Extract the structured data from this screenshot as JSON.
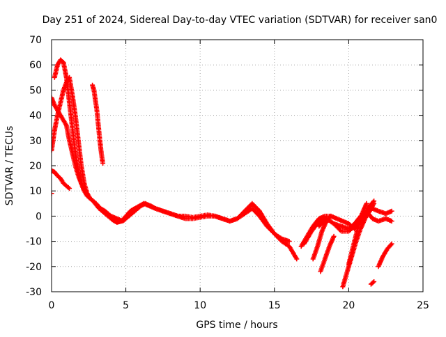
{
  "chart_data": {
    "type": "scatter",
    "title": "Day 251 of 2024, Sidereal Day-to-day VTEC variation (SDTVAR) for receiver san0",
    "xlabel": "GPS time / hours",
    "ylabel": "SDTVAR / TECUs",
    "xlim": [
      0,
      25
    ],
    "ylim": [
      -30,
      70
    ],
    "xticks": [
      "0",
      "5",
      "10",
      "15",
      "20",
      "25"
    ],
    "yticks": [
      "-30",
      "-20",
      "-10",
      "0",
      "10",
      "20",
      "30",
      "40",
      "50",
      "60",
      "70"
    ],
    "grid": true,
    "marker": "+",
    "series": [
      {
        "name": "s1",
        "color": "#ff0000",
        "x": [
          0.0,
          0.2,
          0.4,
          0.6,
          0.8,
          1.0,
          1.2,
          1.4,
          1.6,
          1.8,
          2.0,
          2.2,
          2.4,
          2.6,
          2.8,
          3.0,
          3.2,
          3.5,
          3.8,
          4.1,
          4.4,
          4.7,
          5.0,
          5.3,
          5.6,
          5.9,
          6.2,
          6.6,
          7.0,
          7.5,
          8.0,
          8.5,
          9.0,
          9.5,
          10.0,
          10.5,
          11.0,
          11.5,
          12.0,
          12.5,
          13.0,
          13.5,
          14.0,
          14.5,
          15.0,
          15.5,
          16.0
        ],
        "y": [
          47,
          44,
          42,
          40,
          38,
          36,
          30,
          25,
          20,
          16,
          13,
          10,
          8,
          7,
          6,
          4.5,
          3,
          1.5,
          0,
          -1.5,
          -2.5,
          -2,
          0,
          2,
          3,
          4,
          5,
          4,
          3,
          2,
          1,
          0,
          -1,
          -1,
          -0.5,
          0,
          0,
          -1,
          -2,
          -1,
          1,
          3,
          0,
          -4,
          -7,
          -9,
          -10
        ]
      },
      {
        "name": "s2",
        "color": "#ff0000",
        "x": [
          0.0,
          0.2,
          0.4,
          0.6,
          0.8,
          1.0,
          1.2
        ],
        "y": [
          18,
          17.5,
          16,
          15,
          13,
          12,
          11
        ]
      },
      {
        "name": "s3",
        "color": "#ff0000",
        "x": [
          0.0,
          0.2,
          0.4,
          0.6,
          0.8,
          1.0,
          1.2,
          1.4,
          1.6,
          1.8,
          2.0,
          2.2,
          2.4,
          2.6,
          2.8,
          3.0,
          3.3,
          3.6,
          4.0,
          4.4,
          4.8,
          5.2,
          5.6,
          6.0,
          6.3,
          6.7,
          7.0,
          7.5,
          8.0,
          8.5,
          9.0,
          9.5,
          10.0,
          10.5,
          11.0,
          11.5,
          12.0,
          12.5,
          13.0,
          13.5,
          14.0,
          14.5,
          15.0,
          15.5,
          16.0,
          16.5
        ],
        "y": [
          26,
          34,
          40,
          45,
          50,
          53,
          55,
          48,
          40,
          30,
          20,
          13,
          9,
          7,
          6,
          5,
          3,
          2,
          0,
          -1,
          -2,
          0,
          2,
          4,
          5,
          4,
          3,
          2,
          1,
          0,
          0,
          -0.5,
          0,
          0.5,
          0,
          -1,
          -2,
          -1,
          2,
          5,
          2,
          -3,
          -7,
          -10,
          -12,
          -17
        ]
      },
      {
        "name": "s4",
        "color": "#ff0000",
        "x": [
          0.2,
          0.4,
          0.6,
          0.8,
          1.0,
          1.2,
          1.4,
          1.6,
          1.8,
          2.0,
          2.2,
          2.4,
          2.6
        ],
        "y": [
          55,
          60,
          62,
          61,
          55,
          45,
          35,
          25,
          18,
          13,
          10,
          8,
          7
        ]
      },
      {
        "name": "s5",
        "color": "#ff0000",
        "x": [
          2.75,
          2.85,
          2.95,
          3.05,
          3.15,
          3.25,
          3.35,
          3.45
        ],
        "y": [
          52,
          50,
          46,
          42,
          36,
          30,
          25,
          21
        ]
      },
      {
        "name": "s6",
        "color": "#ff0000",
        "x": [
          0.0
        ],
        "y": [
          9
        ]
      },
      {
        "name": "s7",
        "color": "#ff0000",
        "x": [
          17.0,
          17.5,
          18.0,
          18.5,
          19.0,
          19.5,
          20.0,
          20.4,
          20.8,
          21.2,
          21.6,
          22.0,
          22.5,
          22.9
        ],
        "y": [
          -11,
          -6,
          -2,
          -1,
          -3,
          -6,
          -6,
          -4,
          -2,
          1,
          3,
          2,
          1,
          2
        ]
      },
      {
        "name": "s8",
        "color": "#ff0000",
        "x": [
          18.0,
          18.5,
          19.0,
          19.5,
          20.0,
          20.4,
          20.8,
          21.2,
          21.6,
          22.0,
          22.5,
          22.9
        ],
        "y": [
          -4,
          -1,
          -3,
          -4,
          -5,
          -3,
          0,
          2,
          -1,
          -2,
          -1,
          -2
        ]
      },
      {
        "name": "s9",
        "color": "#ff0000",
        "x": [
          16.8,
          17.2,
          17.6,
          18.0,
          18.4,
          18.8,
          19.2,
          19.6,
          20.0,
          20.4,
          20.8,
          21.1,
          21.4,
          21.7
        ],
        "y": [
          -12,
          -8,
          -4,
          -1,
          0,
          0,
          -1,
          -2,
          -3,
          -5,
          -2,
          1,
          4,
          6
        ]
      },
      {
        "name": "s10",
        "color": "#ff0000",
        "x": [
          17.6,
          17.9,
          18.2,
          18.5,
          18.8
        ],
        "y": [
          -17,
          -12,
          -6,
          -2,
          0
        ]
      },
      {
        "name": "s11",
        "color": "#ff0000",
        "x": [
          18.1,
          18.4,
          18.7,
          19.0
        ],
        "y": [
          -22,
          -17,
          -12,
          -8
        ]
      },
      {
        "name": "s12",
        "color": "#ff0000",
        "x": [
          19.6,
          19.9,
          20.2,
          20.5,
          20.8,
          21.1,
          21.4,
          21.7
        ],
        "y": [
          -28,
          -22,
          -16,
          -10,
          -5,
          -1,
          2,
          5
        ]
      },
      {
        "name": "s13",
        "color": "#ff0000",
        "x": [
          20.0,
          20.3,
          20.6,
          20.9,
          21.2
        ],
        "y": [
          -19,
          -12,
          -5,
          1,
          5
        ]
      },
      {
        "name": "s14",
        "color": "#ff0000",
        "x": [
          21.5,
          21.7
        ],
        "y": [
          -27,
          -26
        ]
      },
      {
        "name": "s15",
        "color": "#ff0000",
        "x": [
          22.0,
          22.3,
          22.6,
          22.9
        ],
        "y": [
          -20,
          -16,
          -13,
          -11
        ]
      }
    ]
  }
}
